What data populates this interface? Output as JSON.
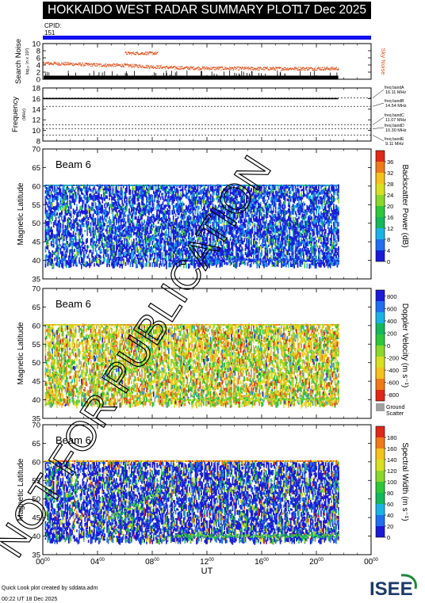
{
  "title": "HOKKAIDO WEST RADAR SUMMARY PLOT",
  "date": "17 Dec 2025",
  "cpid_label": "CPID:",
  "cpid_value": "151",
  "watermark": "NOT FOR PUBLICATION",
  "footer": {
    "note": "Quick Look plot created by sddata.adm",
    "time": "00:22 UT 18 Dec 2025"
  },
  "logo_text": "ISEE",
  "colors": {
    "cpid_bar": "#1010ee",
    "sky_noise": "#e0501a",
    "search_noise": "#000000",
    "ground_scatter": "#a0a0a0"
  },
  "chart_data": [
    {
      "type": "area",
      "name": "noise",
      "ylabel": "Search Noise",
      "ylabel_sub": "log₁₀ (n x 10²)",
      "right_label": "Sky Noise",
      "ylim": [
        0,
        10
      ],
      "yticks": [
        "0",
        "2",
        "4",
        "6",
        "8",
        "10"
      ],
      "x_range_hours": [
        0,
        24
      ],
      "data_end_hour": 21.6,
      "search_noise_level": 1.0,
      "sky_noise_profile": [
        [
          0.0,
          4.6
        ],
        [
          2.0,
          4.4
        ],
        [
          4.0,
          4.1
        ],
        [
          6.0,
          4.0
        ],
        [
          8.0,
          3.6
        ],
        [
          10.0,
          3.3
        ],
        [
          12.0,
          3.2
        ],
        [
          16.0,
          3.1
        ],
        [
          21.6,
          3.1
        ]
      ],
      "sky_noise_spike": {
        "start_hour": 6.0,
        "end_hour": 8.4,
        "value": 7.4
      }
    },
    {
      "type": "line",
      "name": "frequency",
      "ylabel": "Frequency",
      "ylabel_sub": "(MHz)",
      "ylim": [
        8,
        18
      ],
      "yticks": [
        "8",
        "10",
        "12",
        "14",
        "16",
        "18"
      ],
      "frequency_mhz": 16.0,
      "freq_bands": [
        {
          "label": "freq bandA",
          "value": "16.11 MHz",
          "freq": 16.11
        },
        {
          "label": "freq bandB",
          "value": "14.54 MHz",
          "freq": 14.54
        },
        {
          "label": "freq bandC",
          "value": "11.07 MHz",
          "freq": 11.07
        },
        {
          "label": "freq bandD",
          "value": "10.30 MHz",
          "freq": 10.3
        },
        {
          "label": "freq bandE",
          "value": "9.11 MHz",
          "freq": 9.11
        }
      ]
    },
    {
      "type": "heatmap",
      "name": "power",
      "beam": "Beam  6",
      "ylabel": "Magnetic Latitude",
      "ylim": [
        35,
        70
      ],
      "yticks": [
        "35",
        "40",
        "45",
        "50",
        "55",
        "60",
        "65",
        "70"
      ],
      "colorbar_title": "Backscatter Power (dB)",
      "colorbar_ticks": [
        "0",
        "4",
        "8",
        "12",
        "16",
        "20",
        "24",
        "28",
        "32",
        "36"
      ],
      "colorbar": [
        "#1a1ad8",
        "#1f6ff0",
        "#19b4e6",
        "#12b85a",
        "#2cc83a",
        "#8ad82a",
        "#d8e020",
        "#f5c21a",
        "#f07a18",
        "#e02818"
      ],
      "data_lat_range": [
        39,
        60.5
      ],
      "data_end_hour": 21.6
    },
    {
      "type": "heatmap",
      "name": "velocity",
      "beam": "Beam  6",
      "ylabel": "Magnetic Latitude",
      "ylim": [
        35,
        70
      ],
      "yticks": [
        "35",
        "40",
        "45",
        "50",
        "55",
        "60",
        "65",
        "70"
      ],
      "colorbar_title": "Doppler Velocity (m s⁻¹)",
      "colorbar_ticks": [
        "-800",
        "-600",
        "-400",
        "-200",
        "0",
        "200",
        "400",
        "600",
        "800"
      ],
      "colorbar": [
        "#e02818",
        "#f07a18",
        "#f5c21a",
        "#d8e020",
        "#8ad82a",
        "#2cc83a",
        "#12b85a",
        "#19b4e6",
        "#1f6ff0",
        "#1a1ad8"
      ],
      "ground_scatter_label": "Ground Scatter",
      "data_lat_range": [
        39,
        60.5
      ],
      "data_end_hour": 21.6
    },
    {
      "type": "heatmap",
      "name": "width",
      "beam": "Beam  6",
      "ylabel": "Magnetic Latitude",
      "ylim": [
        35,
        70
      ],
      "yticks": [
        "35",
        "40",
        "45",
        "50",
        "55",
        "60",
        "65",
        "70"
      ],
      "colorbar_title": "Spectral Width (m s⁻¹)",
      "colorbar_ticks": [
        "0",
        "20",
        "40",
        "60",
        "80",
        "100",
        "120",
        "140",
        "160",
        "180"
      ],
      "colorbar": [
        "#1a1ad8",
        "#1f6ff0",
        "#19b4e6",
        "#12b85a",
        "#2cc83a",
        "#8ad82a",
        "#d8e020",
        "#f5c21a",
        "#f07a18",
        "#e02818"
      ],
      "data_lat_range": [
        39,
        60.5
      ],
      "data_end_hour": 21.6
    }
  ],
  "x_axis": {
    "label": "UT",
    "ticks": [
      {
        "hour": 0,
        "major": "00",
        "minor": "00"
      },
      {
        "hour": 4,
        "major": "04",
        "minor": "00"
      },
      {
        "hour": 8,
        "major": "08",
        "minor": "00"
      },
      {
        "hour": 12,
        "major": "12",
        "minor": "00"
      },
      {
        "hour": 16,
        "major": "16",
        "minor": "00"
      },
      {
        "hour": 20,
        "major": "20",
        "minor": "00"
      },
      {
        "hour": 24,
        "major": "00",
        "minor": "00"
      }
    ]
  }
}
